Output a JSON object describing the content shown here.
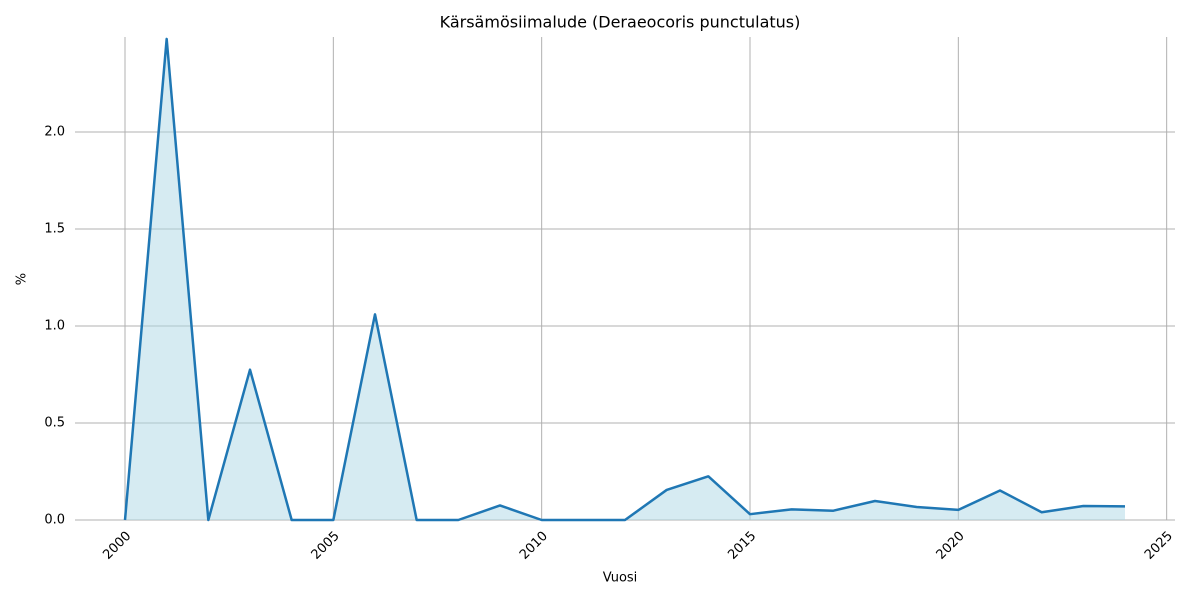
{
  "chart_data": {
    "type": "line",
    "title": "Kärsämösiimalude (Deraeocoris punctulatus)",
    "x_label": "Vuosi",
    "y_label": "%",
    "x": [
      2000,
      2001,
      2002,
      2003,
      2004,
      2005,
      2006,
      2007,
      2008,
      2009,
      2010,
      2011,
      2012,
      2013,
      2014,
      2015,
      2016,
      2017,
      2018,
      2019,
      2020,
      2021,
      2022,
      2023,
      2024
    ],
    "series": [
      {
        "name": "%",
        "color": "#1f77b4",
        "fill_color": "#add8e6",
        "values": [
          0,
          2.48,
          0,
          0.775,
          0,
          0,
          1.06,
          0,
          0,
          0.075,
          0,
          0,
          0,
          0.155,
          0.225,
          0.03,
          0.055,
          0.048,
          0.098,
          0.067,
          0.052,
          0.152,
          0.04,
          0.072,
          0.07
        ]
      }
    ],
    "xlim": [
      1998.8,
      2025.2
    ],
    "ylim": [
      0,
      2.49
    ],
    "xticks": [
      2000,
      2005,
      2010,
      2015,
      2020,
      2025
    ],
    "yticks": [
      {
        "value": 0,
        "label": "0.0"
      },
      0.5,
      {
        "value": 1,
        "label": "1.0"
      },
      1.5,
      {
        "value": 2,
        "label": "2.0"
      }
    ],
    "grid": true
  }
}
